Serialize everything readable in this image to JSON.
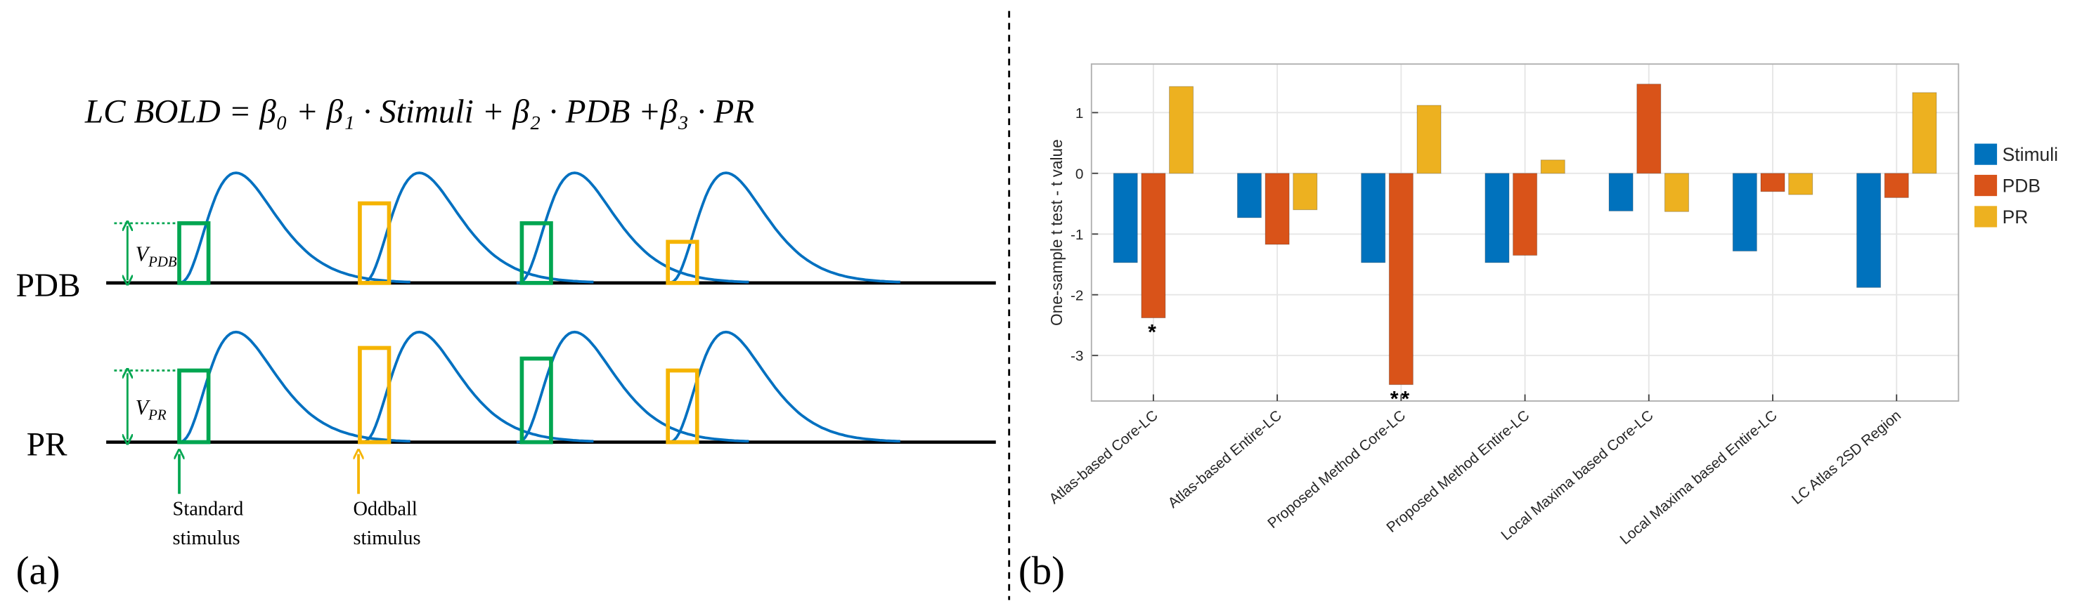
{
  "panel_a": {
    "label": "(a)",
    "equation": "LC BOLD  = β₀ + β₁ · Stimuli + β₂ · PDB +β₃ · PR",
    "rows": [
      {
        "name": "PDB",
        "v_main": "V",
        "v_sub": "PDB"
      },
      {
        "name": "PR",
        "v_main": "V",
        "v_sub": "PR"
      }
    ],
    "standard_label": [
      "Standard",
      "stimulus"
    ],
    "oddball_label": [
      "Oddball",
      "stimulus"
    ]
  },
  "chart_data": {
    "type": "bar",
    "panel_label": "(b)",
    "ylabel": "One-sample t test - t value",
    "categories": [
      "Atlas-based Core-LC",
      "Atlas-based Entire-LC",
      "Proposed Method Core-LC",
      "Proposed Method Entire-LC",
      "Local Maxima based Core-LC",
      "Local Maxima based Entire-LC",
      "LC Atlas 2SD Region"
    ],
    "series": [
      {
        "name": "Stimuli",
        "color": "#0072BD",
        "values": [
          -1.47,
          -0.73,
          -1.47,
          -1.47,
          -0.62,
          -1.28,
          -1.88
        ]
      },
      {
        "name": "PDB",
        "color": "#D95319",
        "values": [
          -2.38,
          -1.17,
          -3.48,
          -1.35,
          1.47,
          -0.3,
          -0.4
        ]
      },
      {
        "name": "PR",
        "color": "#EDB120",
        "values": [
          1.43,
          -0.6,
          1.12,
          0.22,
          -0.63,
          -0.35,
          1.33
        ]
      }
    ],
    "annotations": [
      {
        "text": "*",
        "category": "Atlas-based Core-LC",
        "series": "PDB"
      },
      {
        "text": "**",
        "category": "Proposed Method Core-LC",
        "series": "PDB"
      }
    ],
    "ylim": [
      -3.75,
      1.8
    ],
    "yticks": [
      -3,
      -2,
      -1,
      0,
      1
    ],
    "grid": true,
    "legend": "right"
  }
}
